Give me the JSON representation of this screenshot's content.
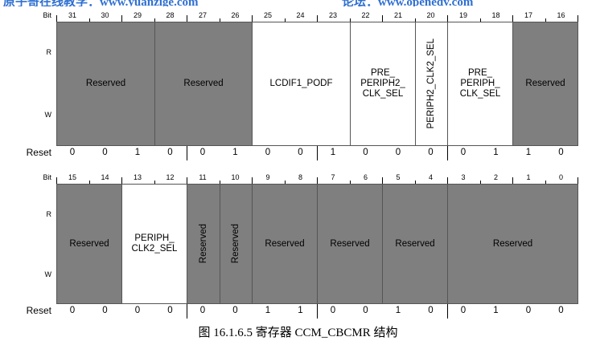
{
  "header": {
    "left_text": "原子哥在线教学：www.yuanzige.com",
    "right_text": "论坛：www.openedv.com"
  },
  "row_labels": {
    "bit": "Bit",
    "read": "R",
    "write": "W",
    "reset": "Reset"
  },
  "upper": {
    "bits": [
      "31",
      "30",
      "29",
      "28",
      "27",
      "26",
      "25",
      "24",
      "23",
      "22",
      "21",
      "20",
      "19",
      "18",
      "17",
      "16"
    ],
    "fields": [
      {
        "label": "Reserved",
        "span": 3,
        "reserved": true,
        "vertical": false
      },
      {
        "label": "Reserved",
        "span": 3,
        "reserved": true,
        "vertical": false
      },
      {
        "label": "LCDIF1_PODF",
        "span": 3,
        "reserved": false,
        "vertical": false
      },
      {
        "label": "PRE_\nPERIPH2_\nCLK_SEL",
        "span": 2,
        "reserved": false,
        "vertical": false
      },
      {
        "label": "PERIPH2_CLK2_SEL",
        "span": 1,
        "reserved": false,
        "vertical": true
      },
      {
        "label": "PRE_\nPERIPH_\nCLK_SEL",
        "span": 2,
        "reserved": false,
        "vertical": false
      },
      {
        "label": "Reserved",
        "span": 2,
        "reserved": true,
        "vertical": false
      }
    ],
    "reset": [
      "0",
      "0",
      "1",
      "0",
      "0",
      "1",
      "0",
      "0",
      "1",
      "0",
      "0",
      "0",
      "0",
      "1",
      "1",
      "0"
    ]
  },
  "lower": {
    "bits": [
      "15",
      "14",
      "13",
      "12",
      "11",
      "10",
      "9",
      "8",
      "7",
      "6",
      "5",
      "4",
      "3",
      "2",
      "1",
      "0"
    ],
    "fields": [
      {
        "label": "Reserved",
        "span": 2,
        "reserved": true,
        "vertical": false
      },
      {
        "label": "PERIPH_\nCLK2_SEL",
        "span": 2,
        "reserved": false,
        "vertical": false
      },
      {
        "label": "Reserved",
        "span": 1,
        "reserved": true,
        "vertical": true
      },
      {
        "label": "Reserved",
        "span": 1,
        "reserved": true,
        "vertical": true
      },
      {
        "label": "Reserved",
        "span": 2,
        "reserved": true,
        "vertical": false
      },
      {
        "label": "Reserved",
        "span": 2,
        "reserved": true,
        "vertical": false
      },
      {
        "label": "Reserved",
        "span": 2,
        "reserved": true,
        "vertical": false
      },
      {
        "label": "Reserved",
        "span": 4,
        "reserved": true,
        "vertical": false
      }
    ],
    "reset": [
      "0",
      "0",
      "0",
      "0",
      "0",
      "0",
      "1",
      "1",
      "0",
      "0",
      "1",
      "0",
      "0",
      "1",
      "0",
      "0"
    ]
  },
  "caption": "图 16.1.6.5 寄存器 CCM_CBCMR 结构"
}
